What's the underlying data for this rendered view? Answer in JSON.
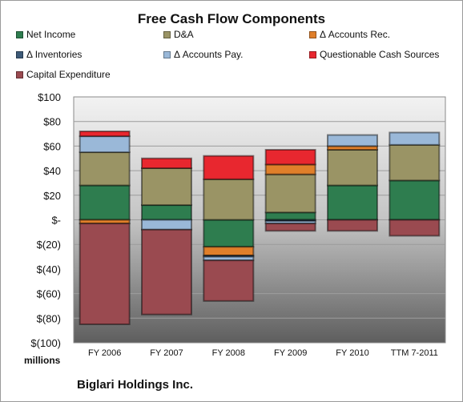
{
  "chart_data": {
    "type": "bar",
    "stacked": true,
    "title": "Free Cash Flow Components",
    "ylabel": "millions",
    "ylim": [
      -100,
      100
    ],
    "yticks": [
      100,
      80,
      60,
      40,
      20,
      0,
      -20,
      -40,
      -60,
      -80,
      -100
    ],
    "ytick_labels": [
      "$100",
      "$80",
      "$60",
      "$40",
      "$20",
      "$-",
      "$(20)",
      "$(40)",
      "$(60)",
      "$(80)",
      "$(100)"
    ],
    "categories": [
      "FY 2006",
      "FY 2007",
      "FY 2008",
      "FY 2009",
      "FY 2010",
      "TTM 7-2011"
    ],
    "series": [
      {
        "name": "Net Income",
        "color": "#2e7d4f",
        "values": [
          28,
          12,
          -22,
          6,
          28,
          32
        ]
      },
      {
        "name": "D&A",
        "color": "#9a9465",
        "values": [
          27,
          30,
          33,
          31,
          29,
          29
        ]
      },
      {
        "name": "Δ Accounts Rec.",
        "color": "#e07f2a",
        "values": [
          -3,
          0,
          -7,
          8,
          3,
          0
        ]
      },
      {
        "name": "Δ Inventories",
        "color": "#3d5a78",
        "values": [
          0,
          0,
          -1,
          -1,
          0,
          0
        ]
      },
      {
        "name": "Δ Accounts Pay.",
        "color": "#9ab8d8",
        "values": [
          13,
          -8,
          -3,
          -2,
          9,
          10
        ]
      },
      {
        "name": "Questionable Cash Sources",
        "color": "#e8272f",
        "values": [
          4,
          8,
          19,
          12,
          0,
          0
        ]
      },
      {
        "name": "Capital Expenditure",
        "color": "#9a4a50",
        "values": [
          -82,
          -69,
          -33,
          -6,
          -9,
          -13
        ]
      }
    ],
    "grid": true,
    "legend_position": "top"
  },
  "footer": {
    "unit_label": "millions",
    "company": "Biglari Holdings Inc."
  }
}
